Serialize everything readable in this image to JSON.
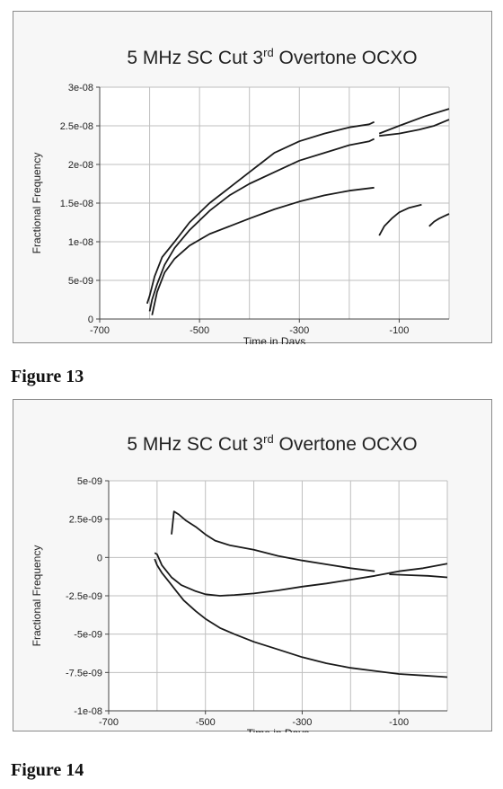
{
  "colors": {
    "line": "#1a1a1a",
    "grid": "#bfbfbf",
    "plot_bg": "#ffffff",
    "frame_bg": "#f7f7f7"
  },
  "chart_data": [
    {
      "id": "figure-13",
      "type": "line",
      "caption": "Figure 13",
      "title_prefix": "5 MHz SC Cut 3",
      "title_sup": "rd",
      "title_suffix": " Overtone OCXO",
      "xlabel": "Time in Days",
      "ylabel": "Fractional Frequency",
      "xlim": [
        -700,
        0
      ],
      "ylim": [
        0,
        3e-08
      ],
      "x_ticks": [
        -700,
        -500,
        -300,
        -100
      ],
      "y_ticks": [
        0,
        5e-09,
        1e-08,
        1.5e-08,
        2e-08,
        2.5e-08,
        3e-08
      ],
      "x_tick_labels": [
        "-700",
        "-500",
        "-300",
        "-100"
      ],
      "y_tick_labels": [
        "0",
        "5e-09",
        "1e-08",
        "1.5e-08",
        "2e-08",
        "2.5e-08",
        "3e-08"
      ],
      "x_grid_lines": [
        -600,
        -500,
        -400,
        -300,
        -200,
        -100,
        0
      ],
      "y_grid_lines": [
        0,
        5e-09,
        1e-08,
        1.5e-08,
        2e-08,
        2.5e-08,
        3e-08
      ],
      "grid": true,
      "series": [
        {
          "segments": [
            {
              "x": [
                -605,
                -600,
                -590,
                -575,
                -550,
                -520,
                -480,
                -440,
                -400,
                -380,
                -350,
                -300,
                -250,
                -200,
                -160,
                -150
              ],
              "y": [
                2e-09,
                3e-09,
                5.5e-09,
                8e-09,
                1e-08,
                1.25e-08,
                1.5e-08,
                1.7e-08,
                1.9e-08,
                2e-08,
                2.15e-08,
                2.3e-08,
                2.4e-08,
                2.48e-08,
                2.52e-08,
                2.55e-08
              ]
            },
            {
              "x": [
                -140,
                -100,
                -50,
                0
              ],
              "y": [
                2.4e-08,
                2.5e-08,
                2.62e-08,
                2.72e-08
              ]
            }
          ]
        },
        {
          "segments": [
            {
              "x": [
                -600,
                -595,
                -585,
                -570,
                -550,
                -520,
                -480,
                -440,
                -400,
                -350,
                -300,
                -250,
                -200,
                -160,
                -150
              ],
              "y": [
                1e-09,
                2.5e-09,
                4.5e-09,
                7e-09,
                9.2e-09,
                1.15e-08,
                1.4e-08,
                1.6e-08,
                1.75e-08,
                1.9e-08,
                2.05e-08,
                2.15e-08,
                2.25e-08,
                2.3e-08,
                2.33e-08
              ]
            },
            {
              "x": [
                -140,
                -100,
                -60,
                -30,
                0
              ],
              "y": [
                2.37e-08,
                2.4e-08,
                2.45e-08,
                2.5e-08,
                2.58e-08
              ]
            }
          ]
        },
        {
          "segments": [
            {
              "x": [
                -595,
                -585,
                -570,
                -550,
                -520,
                -480,
                -440,
                -400,
                -350,
                -300,
                -250,
                -200,
                -150
              ],
              "y": [
                5e-10,
                3.5e-09,
                6e-09,
                7.8e-09,
                9.5e-09,
                1.1e-08,
                1.2e-08,
                1.3e-08,
                1.42e-08,
                1.52e-08,
                1.6e-08,
                1.66e-08,
                1.7e-08
              ]
            },
            {
              "x": [
                -140,
                -130,
                -115,
                -100,
                -80,
                -55
              ],
              "y": [
                1.08e-08,
                1.2e-08,
                1.3e-08,
                1.38e-08,
                1.44e-08,
                1.48e-08
              ]
            },
            {
              "x": [
                -40,
                -30,
                -20,
                -10,
                0
              ],
              "y": [
                1.2e-08,
                1.26e-08,
                1.3e-08,
                1.33e-08,
                1.36e-08
              ]
            }
          ]
        }
      ]
    },
    {
      "id": "figure-14",
      "type": "line",
      "caption": "Figure 14",
      "title_prefix": "5 MHz SC Cut 3",
      "title_sup": "rd",
      "title_suffix": " Overtone OCXO",
      "xlabel": "Time in Days",
      "ylabel": "Fractional Frequency",
      "xlim": [
        -700,
        0
      ],
      "ylim": [
        -1e-08,
        5e-09
      ],
      "x_ticks": [
        -700,
        -500,
        -300,
        -100
      ],
      "y_ticks": [
        5e-09,
        2.5e-09,
        0,
        -2.5e-09,
        -5e-09,
        -7.5e-09,
        -1e-08
      ],
      "x_tick_labels": [
        "-700",
        "-500",
        "-300",
        "-100"
      ],
      "y_tick_labels": [
        "5e-09",
        "2.5e-09",
        "0",
        "-2.5e-09",
        "-5e-09",
        "-7.5e-09",
        "-1e-08"
      ],
      "x_grid_lines": [
        -600,
        -500,
        -400,
        -300,
        -200,
        -100,
        0
      ],
      "y_grid_lines": [
        5e-09,
        2.5e-09,
        0,
        -2.5e-09,
        -5e-09,
        -7.5e-09,
        -1e-08
      ],
      "grid": true,
      "series": [
        {
          "segments": [
            {
              "x": [
                -570,
                -565,
                -555,
                -540,
                -520,
                -500,
                -480,
                -450,
                -400,
                -350,
                -300,
                -250,
                -200,
                -150
              ],
              "y": [
                1.5e-09,
                3e-09,
                2.8e-09,
                2.4e-09,
                2e-09,
                1.5e-09,
                1.1e-09,
                8e-10,
                5e-10,
                1e-10,
                -2e-10,
                -4.5e-10,
                -7e-10,
                -9e-10
              ]
            },
            {
              "x": [
                -120,
                -80,
                -40,
                0
              ],
              "y": [
                -1.1e-09,
                -1.15e-09,
                -1.2e-09,
                -1.3e-09
              ]
            }
          ]
        },
        {
          "segments": [
            {
              "x": [
                -605,
                -600,
                -590,
                -570,
                -550,
                -520,
                -500,
                -470,
                -440,
                -400,
                -350,
                -300,
                -250,
                -200,
                -150,
                -100,
                -50,
                0
              ],
              "y": [
                3e-10,
                2e-10,
                -5e-10,
                -1.3e-09,
                -1.8e-09,
                -2.2e-09,
                -2.4e-09,
                -2.5e-09,
                -2.45e-09,
                -2.35e-09,
                -2.15e-09,
                -1.9e-09,
                -1.7e-09,
                -1.45e-09,
                -1.2e-09,
                -9e-10,
                -7e-10,
                -4e-10
              ]
            }
          ]
        },
        {
          "segments": [
            {
              "x": [
                -605,
                -600,
                -590,
                -575,
                -560,
                -545,
                -520,
                -500,
                -470,
                -440,
                -400,
                -350,
                -300,
                -250,
                -200,
                -150,
                -100,
                -50,
                0
              ],
              "y": [
                -1e-10,
                -5e-10,
                -1e-09,
                -1.6e-09,
                -2.2e-09,
                -2.8e-09,
                -3.5e-09,
                -4e-09,
                -4.6e-09,
                -5e-09,
                -5.5e-09,
                -6e-09,
                -6.5e-09,
                -6.9e-09,
                -7.2e-09,
                -7.4e-09,
                -7.6e-09,
                -7.7e-09,
                -7.8e-09
              ]
            }
          ]
        }
      ]
    }
  ]
}
